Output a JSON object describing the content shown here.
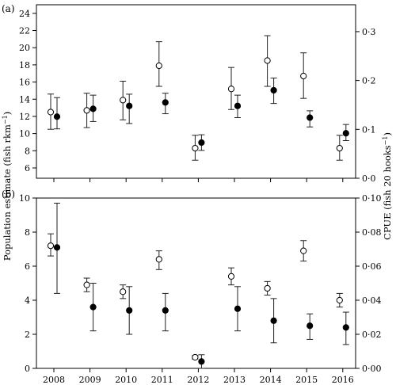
{
  "labels": {
    "left_axis_title": "Population estimate (fish rkm",
    "left_axis_sup": "−1",
    "left_axis_close": ")",
    "right_axis_title": "CPUE (fish 20 hooks",
    "right_axis_sup": "−1",
    "right_axis_close": ")"
  },
  "chart_data": [
    {
      "type": "scatter",
      "panel_label": "(a)",
      "x": [
        "2008",
        "2009",
        "2010",
        "2011",
        "2012",
        "2013",
        "2014",
        "2015",
        "2016"
      ],
      "left_axis": {
        "ylim": [
          4.8,
          25
        ],
        "ticks": [
          6,
          8,
          10,
          12,
          14,
          16,
          18,
          20,
          22,
          24
        ],
        "tick_labels": [
          "6",
          "8",
          "10",
          "12",
          "14",
          "16",
          "18",
          "20",
          "22",
          "24"
        ]
      },
      "right_axis": {
        "ylim": [
          0,
          0.355
        ],
        "ticks": [
          0,
          0.1,
          0.2,
          0.3
        ],
        "tick_labels": [
          "0·0",
          "0·1",
          "0·2",
          "0·3"
        ]
      },
      "series": [
        {
          "marker": "open-circle",
          "axis": "left",
          "values": [
            12.5,
            12.7,
            13.9,
            17.9,
            8.3,
            15.2,
            18.5,
            16.7,
            8.3
          ],
          "err_low": [
            10.5,
            10.7,
            11.6,
            15.5,
            6.9,
            12.8,
            15.5,
            14.1,
            6.9
          ],
          "err_high": [
            14.6,
            14.7,
            16.1,
            20.7,
            9.8,
            17.7,
            21.4,
            19.4,
            9.8
          ]
        },
        {
          "marker": "filled-circle",
          "axis": "right",
          "values": [
            0.126,
            0.142,
            0.148,
            0.155,
            0.073,
            0.148,
            0.18,
            0.124,
            0.092
          ],
          "err_low": [
            0.101,
            0.116,
            0.112,
            0.132,
            0.057,
            0.124,
            0.153,
            0.105,
            0.077
          ],
          "err_high": [
            0.165,
            0.17,
            0.172,
            0.174,
            0.089,
            0.17,
            0.205,
            0.138,
            0.11
          ]
        }
      ]
    },
    {
      "type": "scatter",
      "panel_label": "(b)",
      "x": [
        "2008",
        "2009",
        "2010",
        "2011",
        "2012",
        "2013",
        "2014",
        "2015",
        "2016"
      ],
      "xlabels": [
        "2008",
        "2009",
        "2010",
        "2011",
        "2012",
        "2013",
        "2014",
        "2015",
        "2016"
      ],
      "left_axis": {
        "ylim": [
          0,
          10
        ],
        "ticks": [
          0,
          2,
          4,
          6,
          8,
          10
        ],
        "tick_labels": [
          "0",
          "2",
          "4",
          "6",
          "8",
          "10"
        ]
      },
      "right_axis": {
        "ylim": [
          0,
          0.1
        ],
        "ticks": [
          0,
          0.02,
          0.04,
          0.06,
          0.08,
          0.1
        ],
        "tick_labels": [
          "0·00",
          "0·02",
          "0·04",
          "0·06",
          "0·08",
          "0·10"
        ]
      },
      "series": [
        {
          "marker": "open-circle",
          "axis": "left",
          "values": [
            7.2,
            4.9,
            4.5,
            6.4,
            0.65,
            5.4,
            4.7,
            6.9,
            4.0
          ],
          "err_low": [
            6.6,
            4.5,
            4.1,
            5.8,
            0.55,
            4.9,
            4.3,
            6.3,
            3.6
          ],
          "err_high": [
            7.9,
            5.3,
            4.9,
            6.9,
            0.75,
            5.9,
            5.1,
            7.5,
            4.4
          ]
        },
        {
          "marker": "filled-circle",
          "axis": "right",
          "values": [
            0.071,
            0.036,
            0.034,
            0.034,
            0.004,
            0.035,
            0.028,
            0.025,
            0.024
          ],
          "err_low": [
            0.044,
            0.022,
            0.02,
            0.022,
            0.0,
            0.022,
            0.015,
            0.017,
            0.014
          ],
          "err_high": [
            0.097,
            0.05,
            0.048,
            0.044,
            0.008,
            0.048,
            0.041,
            0.032,
            0.033
          ]
        }
      ]
    }
  ]
}
